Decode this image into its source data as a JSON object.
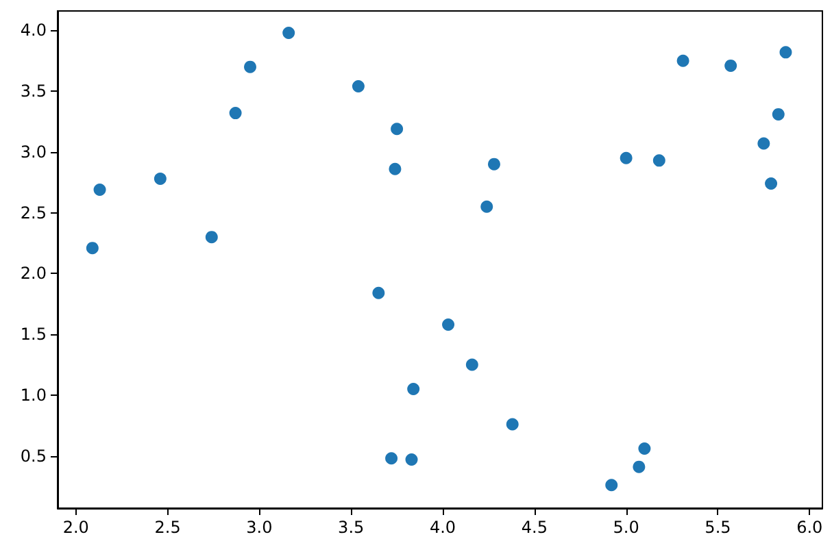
{
  "chart_data": {
    "type": "scatter",
    "color": "#1f77b4",
    "marker": "circle",
    "grid": false,
    "x": [
      2.09,
      2.13,
      2.46,
      2.74,
      2.87,
      2.95,
      3.16,
      3.54,
      3.75,
      3.74,
      3.65,
      4.28,
      4.24,
      4.03,
      4.16,
      3.84,
      3.72,
      3.83,
      4.38,
      4.92,
      5.07,
      5.1,
      5.0,
      5.18,
      5.31,
      5.57,
      5.75,
      5.83,
      5.79,
      5.87
    ],
    "values": [
      2.21,
      2.69,
      2.78,
      2.3,
      3.32,
      3.7,
      3.98,
      3.54,
      3.19,
      2.86,
      1.84,
      2.9,
      2.55,
      1.58,
      1.25,
      1.05,
      0.48,
      0.47,
      0.76,
      0.26,
      0.41,
      0.56,
      2.95,
      2.93,
      3.75,
      3.71,
      3.07,
      3.31,
      2.74,
      3.82
    ],
    "xlim": [
      1.9,
      6.07
    ],
    "ylim": [
      0.07,
      4.16
    ],
    "xticks": [
      {
        "value": 2,
        "label": "2.0"
      },
      {
        "value": 2.5,
        "label": "2.5"
      },
      {
        "value": 3,
        "label": "3.0"
      },
      {
        "value": 3.5,
        "label": "3.5"
      },
      {
        "value": 4,
        "label": "4.0"
      },
      {
        "value": 4.5,
        "label": "4.5"
      },
      {
        "value": 5,
        "label": "5.0"
      },
      {
        "value": 5.5,
        "label": "5.5"
      },
      {
        "value": 6,
        "label": "6.0"
      }
    ],
    "yticks": [
      {
        "value": 0.5,
        "label": "0.5"
      },
      {
        "value": 1,
        "label": "1.0"
      },
      {
        "value": 1.5,
        "label": "1.5"
      },
      {
        "value": 2,
        "label": "2.0"
      },
      {
        "value": 2.5,
        "label": "2.5"
      },
      {
        "value": 3,
        "label": "3.0"
      },
      {
        "value": 3.5,
        "label": "3.5"
      },
      {
        "value": 4,
        "label": "4.0"
      }
    ]
  }
}
